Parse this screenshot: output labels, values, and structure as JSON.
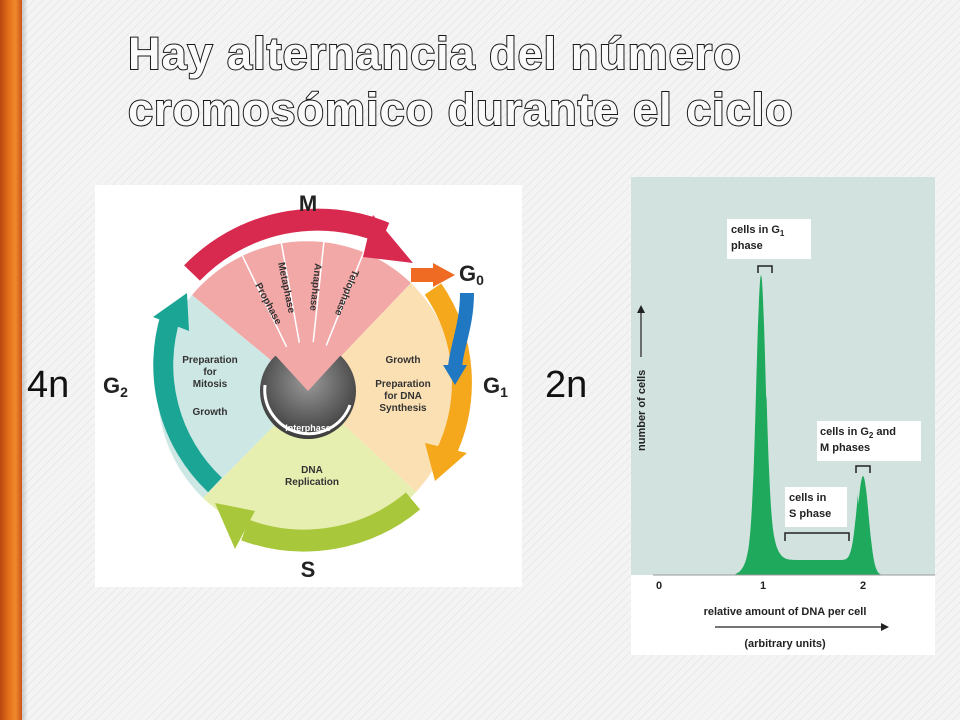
{
  "title_lines": [
    "Hay alternancia del número",
    "cromosómico durante el ciclo"
  ],
  "ploidy": {
    "left": "4n",
    "right": "2n"
  },
  "cell_cycle": {
    "M": "M",
    "G0": "G",
    "G0_sub": "0",
    "G1": "G",
    "G1_sub": "1",
    "G2": "G",
    "G2_sub": "2",
    "S": "S",
    "mitosis_phases": [
      "Prophase",
      "Metaphase",
      "Anaphase",
      "Telophase"
    ],
    "g2_text": [
      "Preparation",
      "for",
      "Mitosis",
      "Growth"
    ],
    "g1_text": [
      "Growth",
      "Preparation",
      "for DNA",
      "Synthesis"
    ],
    "s_text": [
      "DNA",
      "Replication"
    ],
    "center_label": "Interphase",
    "colors": {
      "M": "#d8294f",
      "G1": "#f6a81c",
      "S": "#a9c73a",
      "G2": "#1ba595",
      "G0": "#ef6a22",
      "arrow_blue": "#1f78c1"
    }
  },
  "histogram": {
    "bg_color": "#d2e3df",
    "fill_color": "#1fa95c",
    "ylabel": "number of cells",
    "xlabel": "relative amount of DNA per cell",
    "xunits": "(arbitrary units)",
    "ticks": [
      "0",
      "1",
      "2"
    ],
    "ann_g1": [
      "cells in G",
      "1",
      "phase"
    ],
    "ann_g2": [
      "cells in G",
      "2",
      " and",
      "M phases"
    ],
    "ann_s": [
      "cells in",
      "S phase"
    ]
  },
  "chart_data": {
    "type": "area",
    "xlabel": "relative amount of DNA per cell",
    "ylabel": "number of cells",
    "x_ticks": [
      0,
      1,
      2
    ],
    "x": [
      0.9,
      1.0,
      1.1,
      1.25,
      1.5,
      1.75,
      1.9,
      2.0,
      2.1
    ],
    "y": [
      0.02,
      1.0,
      0.2,
      0.05,
      0.05,
      0.05,
      0.2,
      0.35,
      0.02
    ],
    "annotations": [
      "cells in G1 phase",
      "cells in S phase",
      "cells in G2 and M phases"
    ]
  }
}
